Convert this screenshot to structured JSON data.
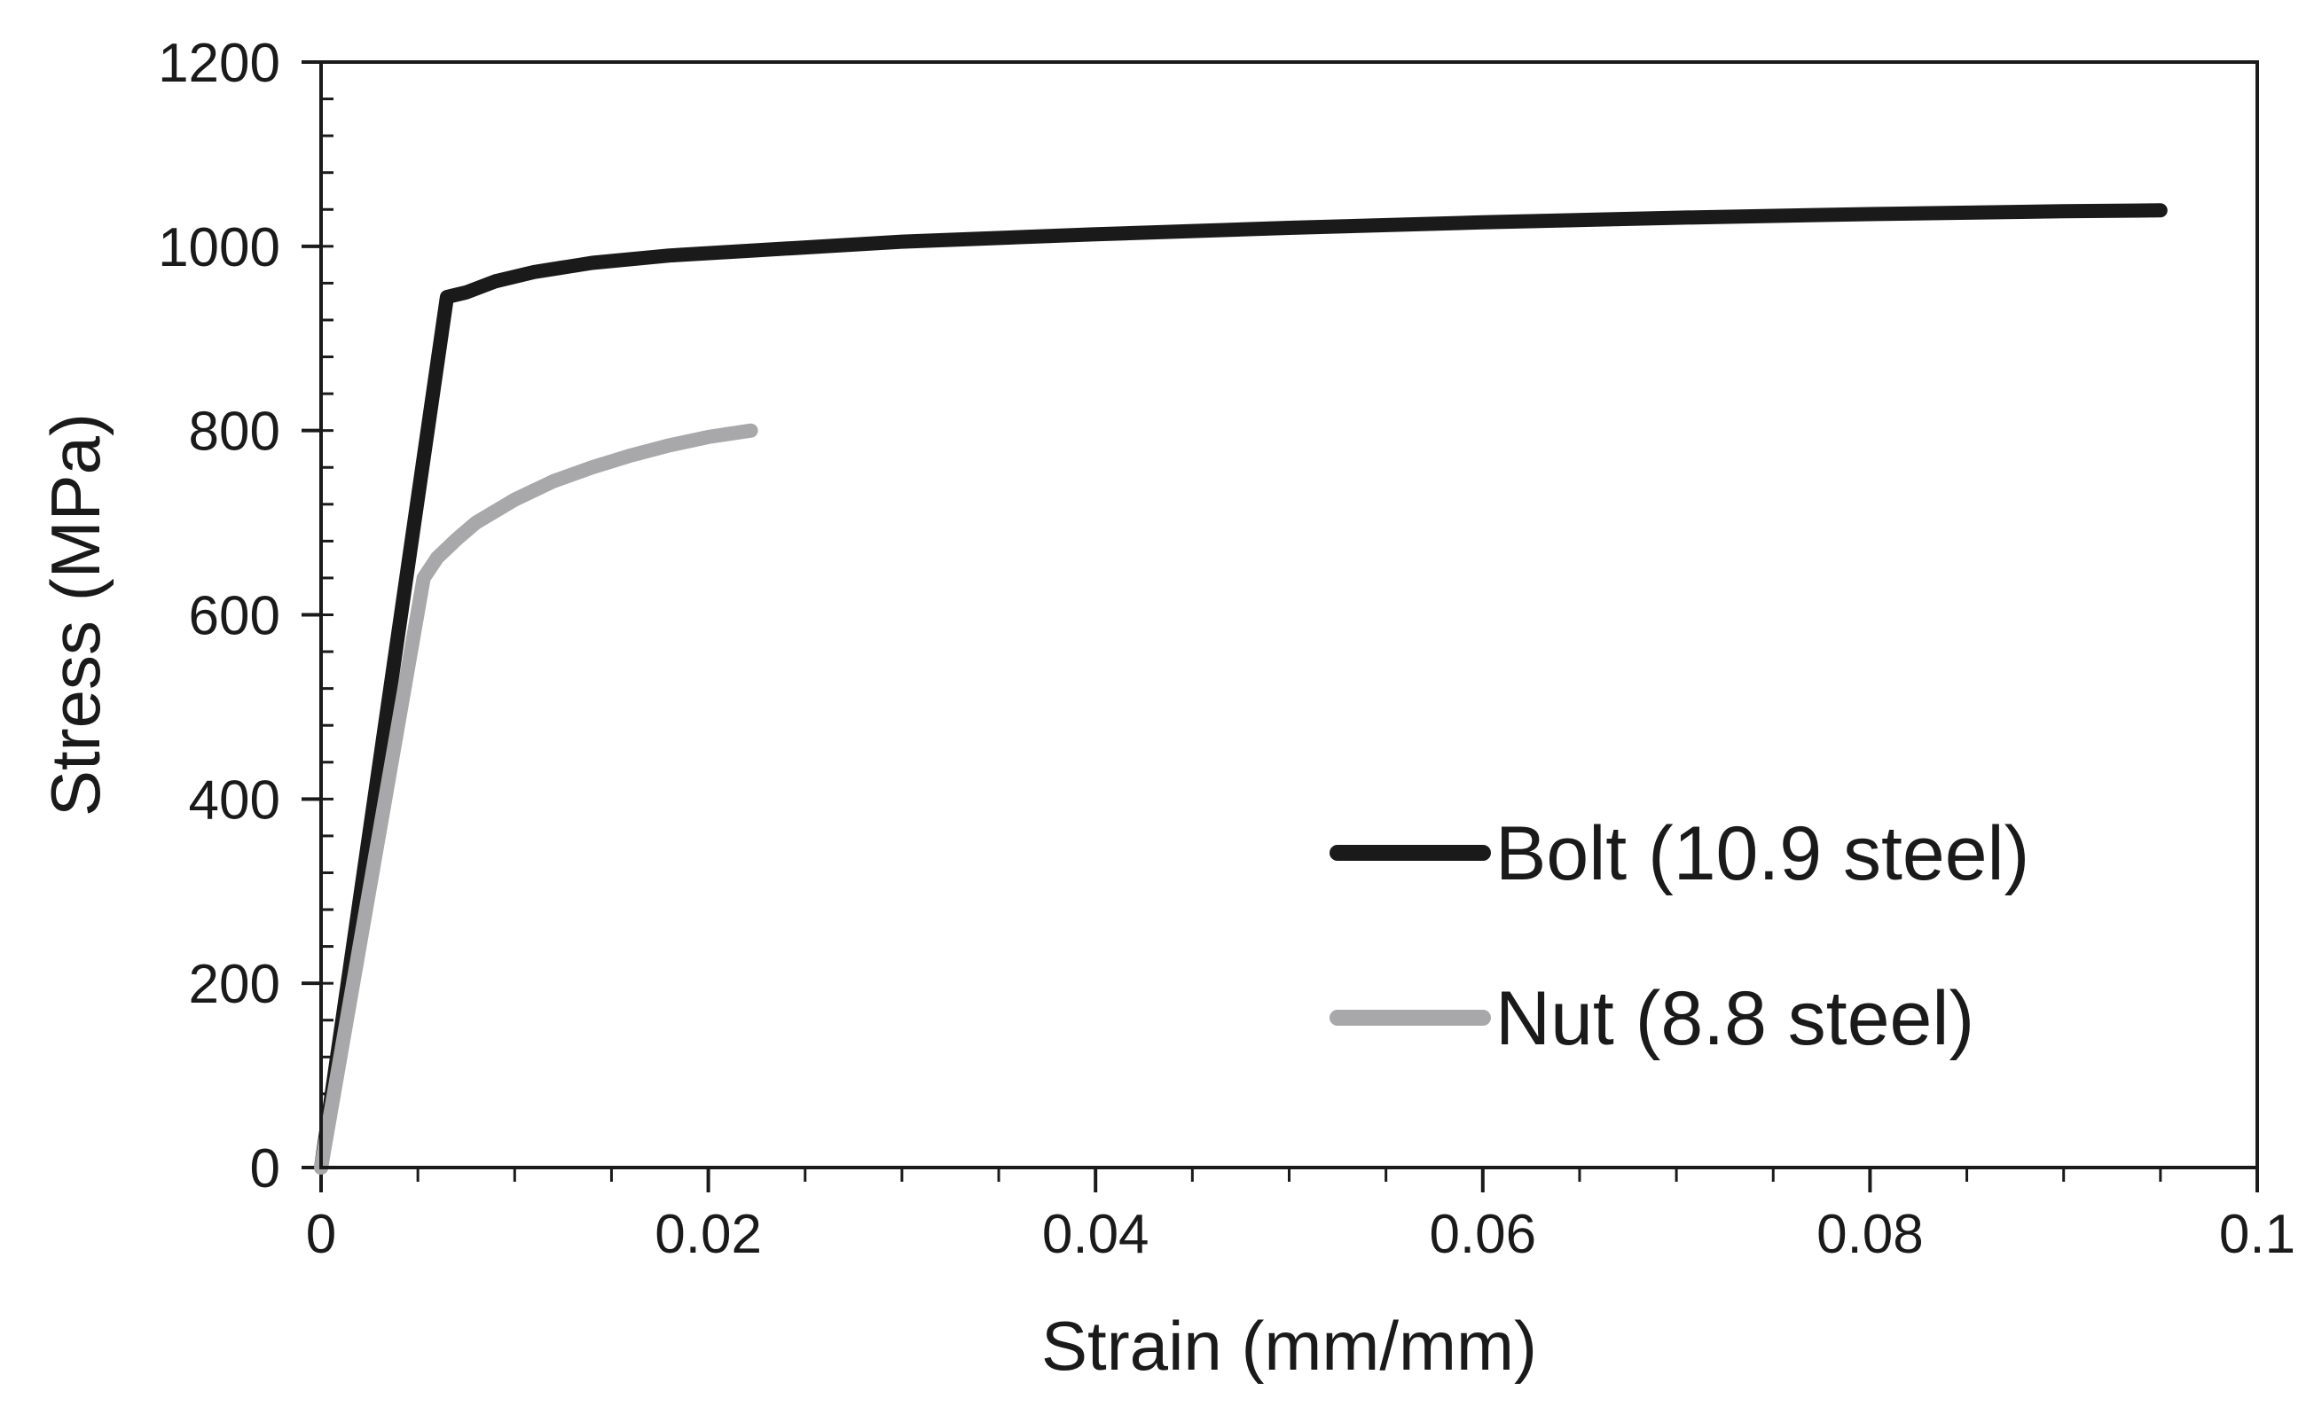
{
  "chart_data": {
    "type": "line",
    "title": "",
    "xlabel": "Strain (mm/mm)",
    "ylabel": "Stress (MPa)",
    "xlim": [
      0,
      0.1
    ],
    "ylim": [
      0,
      1200
    ],
    "x_ticks": [
      0,
      0.02,
      0.04,
      0.06,
      0.08,
      0.1
    ],
    "x_tick_labels": [
      "0",
      "0.02",
      "0.04",
      "0.06",
      "0.08",
      "0.1"
    ],
    "y_ticks": [
      0,
      200,
      400,
      600,
      800,
      1000,
      1200
    ],
    "y_tick_labels": [
      "0",
      "200",
      "400",
      "600",
      "800",
      "1000",
      "1200"
    ],
    "x_minor_step": 0.005,
    "y_minor_step": 40,
    "grid": false,
    "legend_position": "bottom-right",
    "series": [
      {
        "name": "Bolt (10.9 steel)",
        "color": "#1a1a1a",
        "x": [
          0,
          0.0065,
          0.0075,
          0.009,
          0.011,
          0.014,
          0.018,
          0.022,
          0.03,
          0.04,
          0.05,
          0.06,
          0.07,
          0.08,
          0.09,
          0.095
        ],
        "y": [
          0,
          945,
          950,
          962,
          972,
          982,
          990,
          995,
          1005,
          1013,
          1020,
          1026,
          1031,
          1035,
          1038,
          1039
        ]
      },
      {
        "name": "Nut (8.8 steel)",
        "color": "#a8a8aa",
        "x": [
          0,
          0.0053,
          0.006,
          0.007,
          0.008,
          0.01,
          0.012,
          0.014,
          0.016,
          0.018,
          0.02,
          0.0222
        ],
        "y": [
          0,
          640,
          662,
          682,
          700,
          725,
          745,
          760,
          773,
          784,
          793,
          800
        ]
      }
    ]
  }
}
